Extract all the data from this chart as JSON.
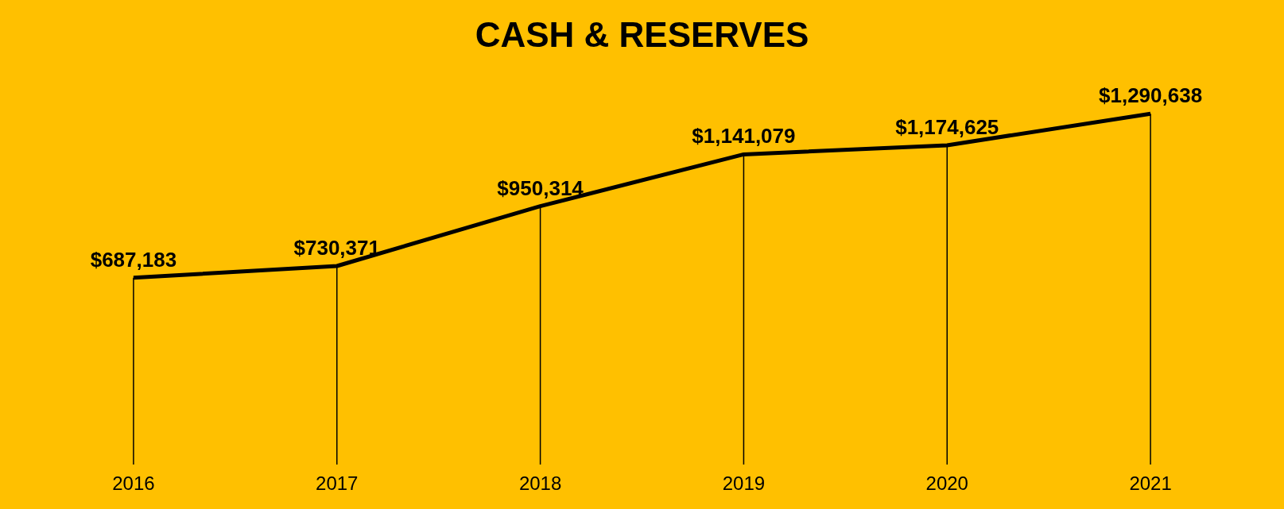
{
  "chart_data": {
    "type": "line",
    "title": "CASH & RESERVES",
    "categories": [
      "2016",
      "2017",
      "2018",
      "2019",
      "2020",
      "2021"
    ],
    "series": [
      {
        "color": "#000000",
        "values": [
          687183,
          730371,
          950314,
          1141079,
          1174625,
          1290638
        ],
        "value_labels": [
          "$687,183",
          "$730,371",
          "$950,314",
          "$1,141,079",
          "$1,174,625",
          "$1,290,638"
        ]
      }
    ],
    "marker": "none",
    "line_style": "solid",
    "grid": "x"
  }
}
